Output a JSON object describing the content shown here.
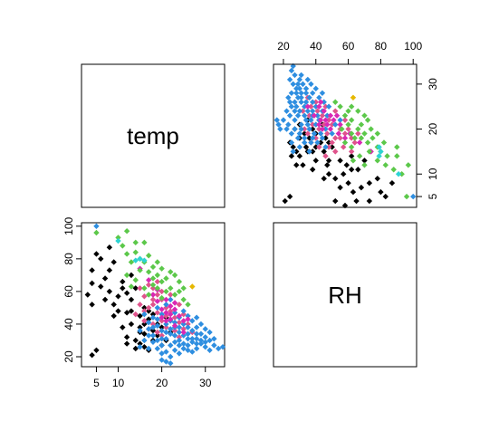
{
  "chart_data": {
    "type": "scatter-matrix",
    "variables": [
      "temp",
      "RH"
    ],
    "diag_labels": [
      "temp",
      "RH"
    ],
    "axes": {
      "temp": {
        "range": [
          2,
          34
        ],
        "ticks": [
          5,
          10,
          20,
          30
        ],
        "tick_labels": [
          "5",
          "10",
          "20",
          "30"
        ]
      },
      "RH": {
        "range": [
          15,
          101
        ],
        "ticks": [
          20,
          40,
          60,
          80,
          100
        ],
        "tick_labels": [
          "20",
          "40",
          "60",
          "80",
          "100"
        ]
      },
      "temp_right": {
        "ticks": [
          5,
          10,
          20,
          30
        ],
        "tick_labels": [
          "5",
          "10",
          "20",
          "30"
        ]
      }
    },
    "point_colors": [
      "#000000",
      "#e0538c",
      "#2e8ee0",
      "#d928b4",
      "#5cc84a",
      "#2ed3d3",
      "#e6b800"
    ],
    "groups": [
      {
        "color": "#000000",
        "points": [
          [
            4,
            21
          ],
          [
            5,
            24
          ],
          [
            4,
            52
          ],
          [
            3,
            58
          ],
          [
            4,
            65
          ],
          [
            4,
            73
          ],
          [
            5,
            83
          ],
          [
            6,
            80
          ],
          [
            7,
            68
          ],
          [
            7,
            55
          ],
          [
            8,
            60
          ],
          [
            8,
            73
          ],
          [
            9,
            52
          ],
          [
            9,
            45
          ],
          [
            10,
            57
          ],
          [
            10,
            48
          ],
          [
            11,
            38
          ],
          [
            11,
            62
          ],
          [
            12,
            47
          ],
          [
            12,
            32
          ],
          [
            12,
            28
          ],
          [
            13,
            55
          ],
          [
            13,
            48
          ],
          [
            13,
            40
          ],
          [
            14,
            30
          ],
          [
            14,
            25
          ],
          [
            14,
            62
          ],
          [
            15,
            45
          ],
          [
            15,
            38
          ],
          [
            15,
            35
          ],
          [
            15,
            28
          ],
          [
            16,
            40
          ],
          [
            16,
            34
          ],
          [
            16,
            26
          ],
          [
            17,
            48
          ],
          [
            17,
            43
          ],
          [
            18,
            36
          ],
          [
            18,
            30
          ],
          [
            19,
            40
          ],
          [
            19,
            33
          ],
          [
            20,
            27
          ],
          [
            20,
            38
          ],
          [
            21,
            30
          ],
          [
            21,
            44
          ],
          [
            22,
            35
          ],
          [
            8,
            87
          ],
          [
            9,
            78
          ],
          [
            11,
            66
          ],
          [
            6,
            63
          ],
          [
            12,
            59
          ],
          [
            13,
            70
          ],
          [
            16,
            50
          ],
          [
            17,
            24
          ],
          [
            18,
            46
          ]
        ]
      },
      {
        "color": "#e0538c",
        "points": [
          [
            14,
            46
          ],
          [
            15,
            52
          ],
          [
            15,
            62
          ],
          [
            16,
            57
          ],
          [
            16,
            42
          ],
          [
            17,
            64
          ],
          [
            17,
            37
          ],
          [
            18,
            62
          ],
          [
            18,
            52
          ],
          [
            18,
            40
          ],
          [
            19,
            58
          ],
          [
            19,
            47
          ],
          [
            19,
            35
          ],
          [
            20,
            55
          ],
          [
            20,
            42
          ],
          [
            20,
            33
          ],
          [
            21,
            50
          ],
          [
            21,
            38
          ],
          [
            22,
            48
          ],
          [
            22,
            58
          ],
          [
            23,
            44
          ],
          [
            23,
            36
          ],
          [
            24,
            41
          ],
          [
            24,
            52
          ],
          [
            25,
            37
          ],
          [
            25,
            46
          ],
          [
            26,
            40
          ],
          [
            27,
            35
          ],
          [
            18,
            55
          ],
          [
            19,
            66
          ],
          [
            21,
            45
          ],
          [
            22,
            42
          ],
          [
            17,
            50
          ],
          [
            20,
            60
          ],
          [
            24,
            32
          ],
          [
            16,
            48
          ]
        ]
      },
      {
        "color": "#2e8ee0",
        "points": [
          [
            5,
            100
          ],
          [
            15,
            36
          ],
          [
            15,
            26
          ],
          [
            16,
            46
          ],
          [
            16,
            30
          ],
          [
            17,
            41
          ],
          [
            17,
            25
          ],
          [
            17,
            33
          ],
          [
            18,
            29
          ],
          [
            18,
            38
          ],
          [
            18,
            44
          ],
          [
            19,
            30
          ],
          [
            19,
            25
          ],
          [
            19,
            43
          ],
          [
            19,
            50
          ],
          [
            20,
            22
          ],
          [
            20,
            27
          ],
          [
            20,
            36
          ],
          [
            20,
            46
          ],
          [
            21,
            17
          ],
          [
            21,
            23
          ],
          [
            21,
            31
          ],
          [
            21,
            40
          ],
          [
            21,
            52
          ],
          [
            22,
            20
          ],
          [
            22,
            27
          ],
          [
            22,
            34
          ],
          [
            22,
            42
          ],
          [
            22,
            55
          ],
          [
            23,
            24
          ],
          [
            23,
            29
          ],
          [
            23,
            38
          ],
          [
            23,
            47
          ],
          [
            24,
            22
          ],
          [
            24,
            30
          ],
          [
            24,
            35
          ],
          [
            24,
            44
          ],
          [
            25,
            25
          ],
          [
            25,
            33
          ],
          [
            25,
            40
          ],
          [
            25,
            48
          ],
          [
            26,
            27
          ],
          [
            26,
            31
          ],
          [
            26,
            38
          ],
          [
            26,
            45
          ],
          [
            27,
            23
          ],
          [
            27,
            29
          ],
          [
            27,
            36
          ],
          [
            27,
            42
          ],
          [
            28,
            25
          ],
          [
            28,
            31
          ],
          [
            28,
            38
          ],
          [
            28,
            44
          ],
          [
            29,
            28
          ],
          [
            29,
            34
          ],
          [
            29,
            40
          ],
          [
            30,
            26
          ],
          [
            30,
            32
          ],
          [
            30,
            37
          ],
          [
            31,
            24
          ],
          [
            31,
            30
          ],
          [
            31,
            35
          ],
          [
            32,
            27
          ],
          [
            32,
            31
          ],
          [
            33,
            25
          ],
          [
            34,
            26
          ],
          [
            20,
            18
          ],
          [
            22,
            16
          ],
          [
            23,
            33
          ],
          [
            24,
            38
          ],
          [
            25,
            28
          ],
          [
            26,
            34
          ],
          [
            27,
            31
          ],
          [
            28,
            34
          ],
          [
            29,
            30
          ],
          [
            30,
            29
          ],
          [
            21,
            35
          ],
          [
            23,
            41
          ],
          [
            19,
            39
          ],
          [
            18,
            33
          ],
          [
            17,
            37
          ],
          [
            20,
            31
          ],
          [
            22,
            37
          ],
          [
            24,
            27
          ],
          [
            26,
            24
          ],
          [
            28,
            28
          ]
        ]
      },
      {
        "color": "#d928b4",
        "points": [
          [
            15,
            74
          ],
          [
            17,
            67
          ],
          [
            18,
            58
          ],
          [
            19,
            54
          ],
          [
            20,
            49
          ],
          [
            20,
            44
          ],
          [
            21,
            55
          ],
          [
            21,
            47
          ],
          [
            22,
            51
          ],
          [
            22,
            43
          ],
          [
            23,
            49
          ],
          [
            23,
            39
          ],
          [
            24,
            45
          ],
          [
            25,
            42
          ],
          [
            26,
            43
          ],
          [
            19,
            61
          ],
          [
            21,
            42
          ],
          [
            23,
            53
          ],
          [
            25,
            35
          ],
          [
            22,
            46
          ]
        ]
      },
      {
        "color": "#5cc84a",
        "points": [
          [
            5,
            96
          ],
          [
            10,
            93
          ],
          [
            12,
            97
          ],
          [
            11,
            88
          ],
          [
            12,
            83
          ],
          [
            13,
            78
          ],
          [
            14,
            84
          ],
          [
            14,
            90
          ],
          [
            15,
            73
          ],
          [
            16,
            78
          ],
          [
            16,
            90
          ],
          [
            17,
            82
          ],
          [
            17,
            72
          ],
          [
            18,
            75
          ],
          [
            18,
            68
          ],
          [
            18,
            64
          ],
          [
            19,
            70
          ],
          [
            19,
            62
          ],
          [
            20,
            74
          ],
          [
            20,
            66
          ],
          [
            21,
            60
          ],
          [
            21,
            68
          ],
          [
            22,
            62
          ],
          [
            23,
            58
          ],
          [
            23,
            70
          ],
          [
            22,
            72
          ],
          [
            24,
            60
          ],
          [
            24,
            66
          ],
          [
            25,
            55
          ],
          [
            25,
            62
          ],
          [
            26,
            52
          ],
          [
            14,
            67
          ],
          [
            12,
            70
          ],
          [
            13,
            63
          ],
          [
            17,
            58
          ],
          [
            20,
            56
          ],
          [
            15,
            80
          ],
          [
            16,
            62
          ],
          [
            19,
            78
          ]
        ]
      },
      {
        "color": "#2ed3d3",
        "points": [
          [
            14,
            79
          ],
          [
            15,
            80
          ],
          [
            16,
            79
          ],
          [
            10,
            91
          ]
        ]
      },
      {
        "color": "#e6b800",
        "points": [
          [
            27,
            63
          ]
        ]
      }
    ]
  }
}
